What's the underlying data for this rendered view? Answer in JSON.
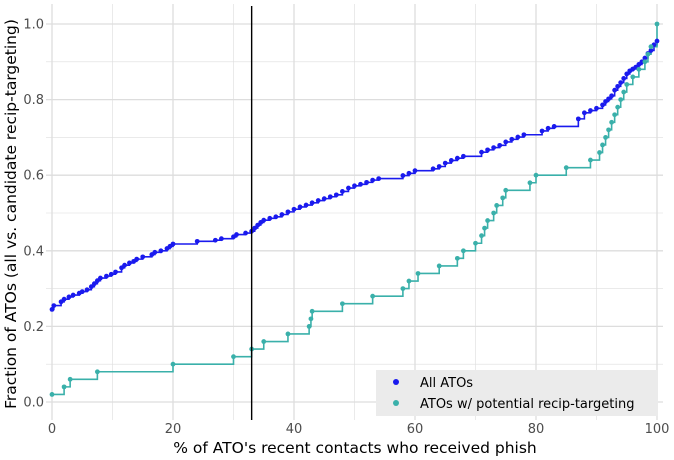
{
  "chart_data": {
    "type": "line",
    "title": "",
    "xlabel": "% of ATO's recent contacts who received phish",
    "ylabel": "Fraction of ATOs (all vs. candidate recip-targeting)",
    "xlim": [
      0,
      100
    ],
    "ylim": [
      0,
      1.0
    ],
    "x_ticks": [
      "0",
      "20",
      "40",
      "60",
      "80",
      "100"
    ],
    "y_ticks": [
      "0.0",
      "0.2",
      "0.4",
      "0.6",
      "0.8",
      "1.0"
    ],
    "vline_x": 33,
    "grid": true,
    "legend": "bottom-right",
    "colors": {
      "all": "#1a1aee",
      "recip": "#3ab0aa",
      "vline": "#000000",
      "grid": "#dddddd",
      "legend_bg": "#ebebeb"
    },
    "series": [
      {
        "name": "All ATOs",
        "step": true,
        "points": [
          [
            0.0,
            0.245
          ],
          [
            0.3,
            0.255
          ],
          [
            1.5,
            0.265
          ],
          [
            2.0,
            0.272
          ],
          [
            2.8,
            0.278
          ],
          [
            3.5,
            0.283
          ],
          [
            4.5,
            0.288
          ],
          [
            5.0,
            0.292
          ],
          [
            5.8,
            0.297
          ],
          [
            6.5,
            0.305
          ],
          [
            7.0,
            0.313
          ],
          [
            7.5,
            0.321
          ],
          [
            8.0,
            0.328
          ],
          [
            9.0,
            0.333
          ],
          [
            9.8,
            0.338
          ],
          [
            10.5,
            0.344
          ],
          [
            11.5,
            0.355
          ],
          [
            12.0,
            0.362
          ],
          [
            12.8,
            0.368
          ],
          [
            13.5,
            0.372
          ],
          [
            14.0,
            0.378
          ],
          [
            15.0,
            0.384
          ],
          [
            16.5,
            0.39
          ],
          [
            17.0,
            0.396
          ],
          [
            18.0,
            0.4
          ],
          [
            19.0,
            0.406
          ],
          [
            19.5,
            0.412
          ],
          [
            20.0,
            0.418
          ],
          [
            24.0,
            0.425
          ],
          [
            27.0,
            0.428
          ],
          [
            28.0,
            0.432
          ],
          [
            30.0,
            0.437
          ],
          [
            30.5,
            0.443
          ],
          [
            32.0,
            0.447
          ],
          [
            33.0,
            0.452
          ],
          [
            33.5,
            0.46
          ],
          [
            34.0,
            0.468
          ],
          [
            34.5,
            0.475
          ],
          [
            35.0,
            0.481
          ],
          [
            36.0,
            0.486
          ],
          [
            37.0,
            0.49
          ],
          [
            38.0,
            0.496
          ],
          [
            39.0,
            0.503
          ],
          [
            40.0,
            0.51
          ],
          [
            41.0,
            0.516
          ],
          [
            42.0,
            0.521
          ],
          [
            43.0,
            0.527
          ],
          [
            44.0,
            0.533
          ],
          [
            45.0,
            0.538
          ],
          [
            46.0,
            0.543
          ],
          [
            47.0,
            0.548
          ],
          [
            48.0,
            0.557
          ],
          [
            49.0,
            0.566
          ],
          [
            50.0,
            0.572
          ],
          [
            51.0,
            0.576
          ],
          [
            52.0,
            0.581
          ],
          [
            53.0,
            0.587
          ],
          [
            54.0,
            0.591
          ],
          [
            58.0,
            0.599
          ],
          [
            59.0,
            0.605
          ],
          [
            60.0,
            0.612
          ],
          [
            63.0,
            0.617
          ],
          [
            64.0,
            0.623
          ],
          [
            65.0,
            0.632
          ],
          [
            66.0,
            0.639
          ],
          [
            67.0,
            0.645
          ],
          [
            68.0,
            0.65
          ],
          [
            71.0,
            0.661
          ],
          [
            72.0,
            0.667
          ],
          [
            73.0,
            0.673
          ],
          [
            74.0,
            0.679
          ],
          [
            75.0,
            0.688
          ],
          [
            76.0,
            0.695
          ],
          [
            77.0,
            0.701
          ],
          [
            78.0,
            0.707
          ],
          [
            81.0,
            0.717
          ],
          [
            82.0,
            0.724
          ],
          [
            83.0,
            0.729
          ],
          [
            87.0,
            0.749
          ],
          [
            88.0,
            0.765
          ],
          [
            89.0,
            0.771
          ],
          [
            90.0,
            0.777
          ],
          [
            91.0,
            0.786
          ],
          [
            91.5,
            0.795
          ],
          [
            92.0,
            0.802
          ],
          [
            92.5,
            0.81
          ],
          [
            93.0,
            0.825
          ],
          [
            93.5,
            0.835
          ],
          [
            94.0,
            0.845
          ],
          [
            94.5,
            0.856
          ],
          [
            95.0,
            0.868
          ],
          [
            95.5,
            0.876
          ],
          [
            96.0,
            0.881
          ],
          [
            96.5,
            0.886
          ],
          [
            97.0,
            0.893
          ],
          [
            97.5,
            0.9
          ],
          [
            98.0,
            0.91
          ],
          [
            98.5,
            0.922
          ],
          [
            99.0,
            0.93
          ],
          [
            99.5,
            0.945
          ],
          [
            100.0,
            0.955
          ]
        ]
      },
      {
        "name": "ATOs w/ potential recip-targeting",
        "step": true,
        "points": [
          [
            0.0,
            0.02
          ],
          [
            2.0,
            0.04
          ],
          [
            3.0,
            0.06
          ],
          [
            7.5,
            0.08
          ],
          [
            20.0,
            0.1
          ],
          [
            30.0,
            0.12
          ],
          [
            33.0,
            0.14
          ],
          [
            35.0,
            0.16
          ],
          [
            39.0,
            0.18
          ],
          [
            42.5,
            0.2
          ],
          [
            42.8,
            0.22
          ],
          [
            43.0,
            0.24
          ],
          [
            48.0,
            0.26
          ],
          [
            53.0,
            0.28
          ],
          [
            58.0,
            0.3
          ],
          [
            59.0,
            0.32
          ],
          [
            60.5,
            0.34
          ],
          [
            64.0,
            0.36
          ],
          [
            67.0,
            0.38
          ],
          [
            68.0,
            0.4
          ],
          [
            70.0,
            0.42
          ],
          [
            71.0,
            0.44
          ],
          [
            71.5,
            0.46
          ],
          [
            72.0,
            0.48
          ],
          [
            73.0,
            0.5
          ],
          [
            73.5,
            0.52
          ],
          [
            74.5,
            0.54
          ],
          [
            75.0,
            0.56
          ],
          [
            79.0,
            0.58
          ],
          [
            80.0,
            0.6
          ],
          [
            85.0,
            0.62
          ],
          [
            89.0,
            0.64
          ],
          [
            90.5,
            0.66
          ],
          [
            91.0,
            0.68
          ],
          [
            91.5,
            0.7
          ],
          [
            92.0,
            0.72
          ],
          [
            92.5,
            0.74
          ],
          [
            93.0,
            0.76
          ],
          [
            93.5,
            0.78
          ],
          [
            94.0,
            0.8
          ],
          [
            94.5,
            0.82
          ],
          [
            95.0,
            0.84
          ],
          [
            96.0,
            0.86
          ],
          [
            97.0,
            0.88
          ],
          [
            98.0,
            0.9
          ],
          [
            98.5,
            0.92
          ],
          [
            99.0,
            0.94
          ],
          [
            100.0,
            1.0
          ]
        ]
      }
    ]
  }
}
